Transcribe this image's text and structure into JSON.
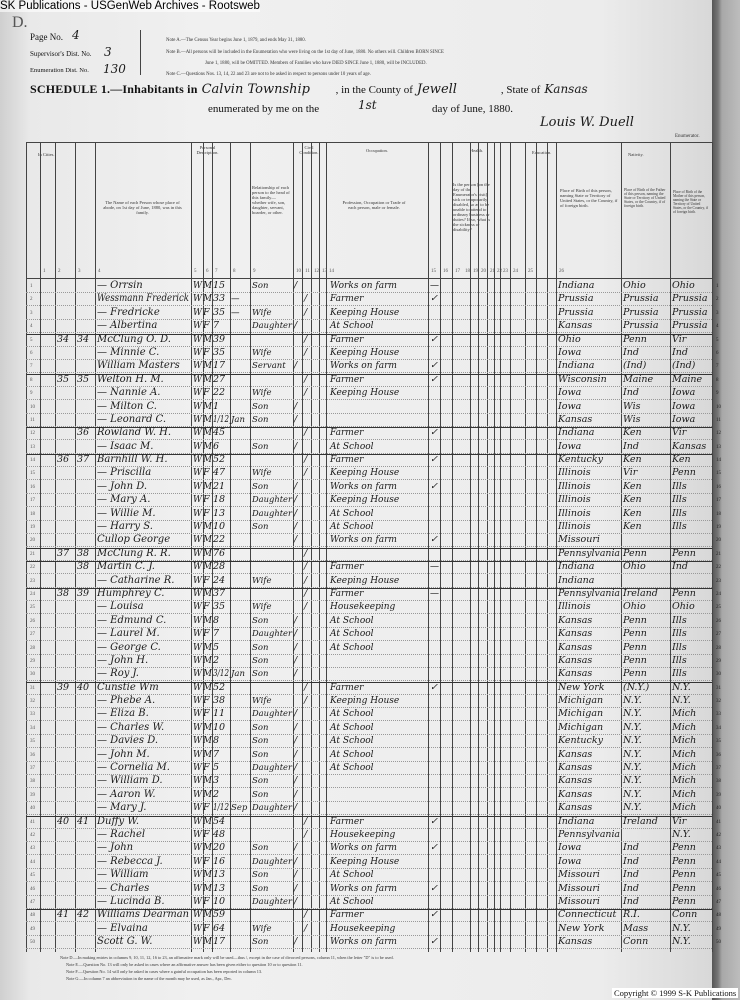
{
  "watermark_top": "SK Publications - USGenWeb Archives - Rootsweb",
  "copyright": "Copyright © 1999 S-K Publications",
  "header": {
    "corner_letter": "D.",
    "page_no_label": "Page No.",
    "page_no": "4",
    "supervisor_label": "Supervisor's Dist. No.",
    "supervisor": "3",
    "enum_label": "Enumeration Dist. No.",
    "enum": "130",
    "note_a": "Note A.—The Census Year begins June 1, 1879, and ends May 31, 1880.",
    "note_b1": "Note B.—All persons will be included in the Enumeration who were living on the 1st day of June, 1880. No others will. Children BORN SINCE",
    "note_b2": "June 1, 1880, will be OMITTED. Members of Families who have DIED SINCE June 1, 1880, will be INCLUDED.",
    "note_c": "Note C.—Questions Nos. 13, 14, 22 and 23 are not to be asked in respect to persons under 10 years of age.",
    "schedule_label": "SCHEDULE 1.—Inhabitants in",
    "township": "Calvin Township",
    "county_label": ", in the County of",
    "county": "Jewell",
    "state_label": ", State of",
    "state": "Kansas",
    "enumerated_label": "enumerated by me on the",
    "day": "1st",
    "date_suffix": "day of June, 1880.",
    "enumerator": "Louis W. Duell",
    "enumerator_label": "Enumerator."
  },
  "column_groups": {
    "in_cities": "In Cities.",
    "personal": "Personal Description.",
    "civil": "Civil Condition.",
    "occupation": "Occupation.",
    "health": "Health.",
    "education": "Education.",
    "nativity": "Nativity."
  },
  "column_headers": {
    "name": "The Name of each Person whose place of abode, on 1st day of June, 1880, was in this family.",
    "relationship": "Relationship of each person to the head of this family—whether wife, son, daughter, servant, boarder, or other.",
    "occupation": "Profession, Occupation or Trade of each person, male or female.",
    "health": "Is the person [on the day of the Enumerator's visit] sick or temporarily disabled, so as to be unable to attend to ordinary business or duties? If so, what is the sickness or disability?",
    "birthplace": "Place of Birth of this person, naming State or Territory of United States, or the Country, if of foreign birth.",
    "father": "Place of Birth of the Father of this person, naming the State or Territory of United States, or the Country, if of foreign birth.",
    "mother": "Place of Birth of the Mother of this person, naming the State or Territory of United States, or the Country, if of foreign birth."
  },
  "column_numbers": [
    "1",
    "2",
    "3",
    "4",
    "5",
    "6",
    "7",
    "8",
    "9",
    "10",
    "11",
    "12",
    "13",
    "14",
    "15",
    "16",
    "17",
    "18",
    "19",
    "20",
    "21",
    "22",
    "23",
    "24",
    "25",
    "26"
  ],
  "footnotes": [
    "Note D.—In making entries in columns 9, 10, 11, 12, 16 to 23, an affirmative mark only will be used—thus /, except in the case of divorced persons, column 11, when the letter \"D\" is to be used.",
    "Note E.—Question No. 13 will only be asked in cases where an affirmative answer has been given either to question 10 or to question 11.",
    "Note F.—Question No. 14 will only be asked in cases where a gainful occupation has been reported in column 13.",
    "Note G.—In column 7 an abbreviation in the name of the month may be used, as Jan., Apr., Dec."
  ],
  "rows": [
    {
      "dw": "",
      "fam": "",
      "name": "— Orrsin",
      "color": "W",
      "sex": "M",
      "age": "15",
      "month": "",
      "rel": "Son",
      "single": "/",
      "married": "",
      "occ": "Works on farm",
      "unemp": "—",
      "born": "Indiana",
      "father": "Ohio",
      "mother": "Ohio"
    },
    {
      "dw": "",
      "fam": "",
      "name": "Wessmann Frederick",
      "color": "W",
      "sex": "M",
      "age": "33",
      "month": "—",
      "rel": "",
      "single": "",
      "married": "/",
      "occ": "Farmer",
      "unemp": "✓",
      "born": "Prussia",
      "father": "Prussia",
      "mother": "Prussia"
    },
    {
      "dw": "",
      "fam": "",
      "name": "— Fredricke",
      "color": "W",
      "sex": "F",
      "age": "35",
      "month": "—",
      "rel": "Wife",
      "single": "",
      "married": "/",
      "occ": "Keeping House",
      "unemp": "",
      "born": "Prussia",
      "father": "Prussia",
      "mother": "Prussia"
    },
    {
      "dw": "",
      "fam": "",
      "name": "— Albertina",
      "color": "W",
      "sex": "F",
      "age": "7",
      "month": "",
      "rel": "Daughter",
      "single": "/",
      "married": "",
      "occ": "At School",
      "unemp": "",
      "born": "Kansas",
      "father": "Prussia",
      "mother": "Prussia"
    },
    {
      "dw": "34",
      "fam": "34",
      "name": "McClung O. D.",
      "color": "W",
      "sex": "M",
      "age": "39",
      "month": "",
      "rel": "",
      "single": "",
      "married": "/",
      "occ": "Farmer",
      "unemp": "✓",
      "born": "Ohio",
      "father": "Penn",
      "mother": "Vir"
    },
    {
      "dw": "",
      "fam": "",
      "name": "— Minnie C.",
      "color": "W",
      "sex": "F",
      "age": "35",
      "month": "",
      "rel": "Wife",
      "single": "",
      "married": "/",
      "occ": "Keeping House",
      "unemp": "",
      "born": "Iowa",
      "father": "Ind",
      "mother": "Ind"
    },
    {
      "dw": "",
      "fam": "",
      "name": "William Masters",
      "color": "W",
      "sex": "M",
      "age": "17",
      "month": "",
      "rel": "Servant",
      "single": "/",
      "married": "",
      "occ": "Works on farm",
      "unemp": "✓",
      "born": "Indiana",
      "father": "(Ind)",
      "mother": "(Ind)"
    },
    {
      "dw": "35",
      "fam": "35",
      "name": "Welton H. M.",
      "color": "W",
      "sex": "M",
      "age": "27",
      "month": "",
      "rel": "",
      "single": "",
      "married": "/",
      "occ": "Farmer",
      "unemp": "✓",
      "born": "Wisconsin",
      "father": "Maine",
      "mother": "Maine"
    },
    {
      "dw": "",
      "fam": "",
      "name": "— Nannie A.",
      "color": "W",
      "sex": "F",
      "age": "22",
      "month": "",
      "rel": "Wife",
      "single": "",
      "married": "/",
      "occ": "Keeping House",
      "unemp": "",
      "born": "Iowa",
      "father": "Ind",
      "mother": "Iowa"
    },
    {
      "dw": "",
      "fam": "",
      "name": "— Milton C.",
      "color": "W",
      "sex": "M",
      "age": "1",
      "month": "",
      "rel": "Son",
      "single": "/",
      "married": "",
      "occ": "",
      "unemp": "",
      "born": "Iowa",
      "father": "Wis",
      "mother": "Iowa"
    },
    {
      "dw": "",
      "fam": "",
      "name": "— Leonard C.",
      "color": "W",
      "sex": "M",
      "age": "1/12",
      "month": "Jan",
      "rel": "Son",
      "single": "/",
      "married": "",
      "occ": "",
      "unemp": "",
      "born": "Kansas",
      "father": "Wis",
      "mother": "Iowa"
    },
    {
      "dw": "",
      "fam": "36",
      "name": "Rowland W. H.",
      "color": "W",
      "sex": "M",
      "age": "45",
      "month": "",
      "rel": "",
      "single": "",
      "married": "/",
      "occ": "Farmer",
      "unemp": "✓",
      "born": "Indiana",
      "father": "Ken",
      "mother": "Vir"
    },
    {
      "dw": "",
      "fam": "",
      "name": "— Isaac M.",
      "color": "W",
      "sex": "M",
      "age": "6",
      "month": "",
      "rel": "Son",
      "single": "/",
      "married": "",
      "occ": "At School",
      "unemp": "",
      "born": "Iowa",
      "father": "Ind",
      "mother": "Kansas"
    },
    {
      "dw": "36",
      "fam": "37",
      "name": "Barnhill W. H.",
      "color": "W",
      "sex": "M",
      "age": "52",
      "month": "",
      "rel": "",
      "single": "",
      "married": "/",
      "occ": "Farmer",
      "unemp": "✓",
      "born": "Kentucky",
      "father": "Ken",
      "mother": "Ken"
    },
    {
      "dw": "",
      "fam": "",
      "name": "— Priscilla",
      "color": "W",
      "sex": "F",
      "age": "47",
      "month": "",
      "rel": "Wife",
      "single": "",
      "married": "/",
      "occ": "Keeping House",
      "unemp": "",
      "born": "Illinois",
      "father": "Vir",
      "mother": "Penn"
    },
    {
      "dw": "",
      "fam": "",
      "name": "— John D.",
      "color": "W",
      "sex": "M",
      "age": "21",
      "month": "",
      "rel": "Son",
      "single": "/",
      "married": "",
      "occ": "Works on farm",
      "unemp": "✓",
      "born": "Illinois",
      "father": "Ken",
      "mother": "Ills"
    },
    {
      "dw": "",
      "fam": "",
      "name": "— Mary A.",
      "color": "W",
      "sex": "F",
      "age": "18",
      "month": "",
      "rel": "Daughter",
      "single": "/",
      "married": "",
      "occ": "Keeping House",
      "unemp": "",
      "born": "Illinois",
      "father": "Ken",
      "mother": "Ills"
    },
    {
      "dw": "",
      "fam": "",
      "name": "— Willie M.",
      "color": "W",
      "sex": "F",
      "age": "13",
      "month": "",
      "rel": "Daughter",
      "single": "/",
      "married": "",
      "occ": "At School",
      "unemp": "",
      "born": "Illinois",
      "father": "Ken",
      "mother": "Ills"
    },
    {
      "dw": "",
      "fam": "",
      "name": "— Harry S.",
      "color": "W",
      "sex": "M",
      "age": "10",
      "month": "",
      "rel": "Son",
      "single": "/",
      "married": "",
      "occ": "At School",
      "unemp": "",
      "born": "Illinois",
      "father": "Ken",
      "mother": "Ills"
    },
    {
      "dw": "",
      "fam": "",
      "name": "Cullop George",
      "color": "W",
      "sex": "M",
      "age": "22",
      "month": "",
      "rel": "",
      "single": "/",
      "married": "",
      "occ": "Works on farm",
      "unemp": "✓",
      "born": "Missouri",
      "father": "",
      "mother": ""
    },
    {
      "dw": "37",
      "fam": "38",
      "name": "McClung R. R.",
      "color": "W",
      "sex": "M",
      "age": "76",
      "month": "",
      "rel": "",
      "single": "",
      "married": "/",
      "occ": "",
      "unemp": "",
      "born": "Pennsylvania",
      "father": "Penn",
      "mother": "Penn"
    },
    {
      "dw": "",
      "fam": "38",
      "name": "Martin C. J.",
      "color": "W",
      "sex": "M",
      "age": "28",
      "month": "",
      "rel": "",
      "single": "",
      "married": "/",
      "occ": "Farmer",
      "unemp": "—",
      "born": "Indiana",
      "father": "Ohio",
      "mother": "Ind"
    },
    {
      "dw": "",
      "fam": "",
      "name": "— Catharine R.",
      "color": "W",
      "sex": "F",
      "age": "24",
      "month": "",
      "rel": "Wife",
      "single": "",
      "married": "/",
      "occ": "Keeping House",
      "unemp": "",
      "born": "Indiana",
      "father": "",
      "mother": ""
    },
    {
      "dw": "38",
      "fam": "39",
      "name": "Humphrey C.",
      "color": "W",
      "sex": "M",
      "age": "37",
      "month": "",
      "rel": "",
      "single": "",
      "married": "/",
      "occ": "Farmer",
      "unemp": "—",
      "born": "Pennsylvania",
      "father": "Ireland",
      "mother": "Penn"
    },
    {
      "dw": "",
      "fam": "",
      "name": "— Louisa",
      "color": "W",
      "sex": "F",
      "age": "35",
      "month": "",
      "rel": "Wife",
      "single": "",
      "married": "/",
      "occ": "Housekeeping",
      "unemp": "",
      "born": "Illinois",
      "father": "Ohio",
      "mother": "Ohio"
    },
    {
      "dw": "",
      "fam": "",
      "name": "— Edmund C.",
      "color": "W",
      "sex": "M",
      "age": "8",
      "month": "",
      "rel": "Son",
      "single": "/",
      "married": "",
      "occ": "At School",
      "unemp": "",
      "born": "Kansas",
      "father": "Penn",
      "mother": "Ills"
    },
    {
      "dw": "",
      "fam": "",
      "name": "— Laurel M.",
      "color": "W",
      "sex": "F",
      "age": "7",
      "month": "",
      "rel": "Daughter",
      "single": "/",
      "married": "",
      "occ": "At School",
      "unemp": "",
      "born": "Kansas",
      "father": "Penn",
      "mother": "Ills"
    },
    {
      "dw": "",
      "fam": "",
      "name": "— George C.",
      "color": "W",
      "sex": "M",
      "age": "5",
      "month": "",
      "rel": "Son",
      "single": "/",
      "married": "",
      "occ": "At School",
      "unemp": "",
      "born": "Kansas",
      "father": "Penn",
      "mother": "Ills"
    },
    {
      "dw": "",
      "fam": "",
      "name": "— John H.",
      "color": "W",
      "sex": "M",
      "age": "2",
      "month": "",
      "rel": "Son",
      "single": "/",
      "married": "",
      "occ": "",
      "unemp": "",
      "born": "Kansas",
      "father": "Penn",
      "mother": "Ills"
    },
    {
      "dw": "",
      "fam": "",
      "name": "— Roy J.",
      "color": "W",
      "sex": "M",
      "age": "3/12",
      "month": "Jan",
      "rel": "Son",
      "single": "/",
      "married": "",
      "occ": "",
      "unemp": "",
      "born": "Kansas",
      "father": "Penn",
      "mother": "Ills"
    },
    {
      "dw": "39",
      "fam": "40",
      "name": "Cunstie Wm",
      "color": "W",
      "sex": "M",
      "age": "52",
      "month": "",
      "rel": "",
      "single": "",
      "married": "/",
      "occ": "Farmer",
      "unemp": "✓",
      "born": "New York",
      "father": "(N.Y.)",
      "mother": "N.Y."
    },
    {
      "dw": "",
      "fam": "",
      "name": "— Phebe A.",
      "color": "W",
      "sex": "F",
      "age": "38",
      "month": "",
      "rel": "Wife",
      "single": "",
      "married": "/",
      "occ": "Keeping House",
      "unemp": "",
      "born": "Michigan",
      "father": "N.Y.",
      "mother": "N.Y."
    },
    {
      "dw": "",
      "fam": "",
      "name": "— Eliza B.",
      "color": "W",
      "sex": "F",
      "age": "11",
      "month": "",
      "rel": "Daughter",
      "single": "/",
      "married": "",
      "occ": "At School",
      "unemp": "",
      "born": "Michigan",
      "father": "N.Y.",
      "mother": "Mich"
    },
    {
      "dw": "",
      "fam": "",
      "name": "— Charles W.",
      "color": "W",
      "sex": "M",
      "age": "10",
      "month": "",
      "rel": "Son",
      "single": "/",
      "married": "",
      "occ": "At School",
      "unemp": "",
      "born": "Michigan",
      "father": "N.Y.",
      "mother": "Mich"
    },
    {
      "dw": "",
      "fam": "",
      "name": "— Davies D.",
      "color": "W",
      "sex": "M",
      "age": "8",
      "month": "",
      "rel": "Son",
      "single": "/",
      "married": "",
      "occ": "At School",
      "unemp": "",
      "born": "Kentucky",
      "father": "N.Y.",
      "mother": "Mich"
    },
    {
      "dw": "",
      "fam": "",
      "name": "— John M.",
      "color": "W",
      "sex": "M",
      "age": "7",
      "month": "",
      "rel": "Son",
      "single": "/",
      "married": "",
      "occ": "At School",
      "unemp": "",
      "born": "Kansas",
      "father": "N.Y.",
      "mother": "Mich"
    },
    {
      "dw": "",
      "fam": "",
      "name": "— Cornelia M.",
      "color": "W",
      "sex": "F",
      "age": "5",
      "month": "",
      "rel": "Daughter",
      "single": "/",
      "married": "",
      "occ": "At School",
      "unemp": "",
      "born": "Kansas",
      "father": "N.Y.",
      "mother": "Mich"
    },
    {
      "dw": "",
      "fam": "",
      "name": "— William D.",
      "color": "W",
      "sex": "M",
      "age": "3",
      "month": "",
      "rel": "Son",
      "single": "/",
      "married": "",
      "occ": "",
      "unemp": "",
      "born": "Kansas",
      "father": "N.Y.",
      "mother": "Mich"
    },
    {
      "dw": "",
      "fam": "",
      "name": "— Aaron W.",
      "color": "W",
      "sex": "M",
      "age": "2",
      "month": "",
      "rel": "Son",
      "single": "/",
      "married": "",
      "occ": "",
      "unemp": "",
      "born": "Kansas",
      "father": "N.Y.",
      "mother": "Mich"
    },
    {
      "dw": "",
      "fam": "",
      "name": "— Mary J.",
      "color": "W",
      "sex": "F",
      "age": "1/12",
      "month": "Sep",
      "rel": "Daughter",
      "single": "/",
      "married": "",
      "occ": "",
      "unemp": "",
      "born": "Kansas",
      "father": "N.Y.",
      "mother": "Mich"
    },
    {
      "dw": "40",
      "fam": "41",
      "name": "Duffy W.",
      "color": "W",
      "sex": "M",
      "age": "54",
      "month": "",
      "rel": "",
      "single": "",
      "married": "/",
      "occ": "Farmer",
      "unemp": "✓",
      "born": "Indiana",
      "father": "Ireland",
      "mother": "Vir"
    },
    {
      "dw": "",
      "fam": "",
      "name": "— Rachel",
      "color": "W",
      "sex": "F",
      "age": "48",
      "month": "",
      "rel": "",
      "single": "",
      "married": "/",
      "occ": "Housekeeping",
      "unemp": "",
      "born": "Pennsylvania",
      "father": "",
      "mother": "N.Y."
    },
    {
      "dw": "",
      "fam": "",
      "name": "— John",
      "color": "W",
      "sex": "M",
      "age": "20",
      "month": "",
      "rel": "Son",
      "single": "/",
      "married": "",
      "occ": "Works on farm",
      "unemp": "✓",
      "born": "Iowa",
      "father": "Ind",
      "mother": "Penn"
    },
    {
      "dw": "",
      "fam": "",
      "name": "— Rebecca J.",
      "color": "W",
      "sex": "F",
      "age": "16",
      "month": "",
      "rel": "Daughter",
      "single": "/",
      "married": "",
      "occ": "Keeping House",
      "unemp": "",
      "born": "Iowa",
      "father": "Ind",
      "mother": "Penn"
    },
    {
      "dw": "",
      "fam": "",
      "name": "— William",
      "color": "W",
      "sex": "M",
      "age": "13",
      "month": "",
      "rel": "Son",
      "single": "/",
      "married": "",
      "occ": "At School",
      "unemp": "",
      "born": "Missouri",
      "father": "Ind",
      "mother": "Penn"
    },
    {
      "dw": "",
      "fam": "",
      "name": "— Charles",
      "color": "W",
      "sex": "M",
      "age": "13",
      "month": "",
      "rel": "Son",
      "single": "/",
      "married": "",
      "occ": "Works on farm",
      "unemp": "✓",
      "born": "Missouri",
      "father": "Ind",
      "mother": "Penn"
    },
    {
      "dw": "",
      "fam": "",
      "name": "— Lucinda B.",
      "color": "W",
      "sex": "F",
      "age": "10",
      "month": "",
      "rel": "Daughter",
      "single": "/",
      "married": "",
      "occ": "At School",
      "unemp": "",
      "born": "Missouri",
      "father": "Ind",
      "mother": "Penn"
    },
    {
      "dw": "41",
      "fam": "42",
      "name": "Williams Dearman",
      "color": "W",
      "sex": "M",
      "age": "59",
      "month": "",
      "rel": "",
      "single": "",
      "married": "/",
      "occ": "Farmer",
      "unemp": "✓",
      "born": "Connecticut",
      "father": "R.I.",
      "mother": "Conn"
    },
    {
      "dw": "",
      "fam": "",
      "name": "— Elvaina",
      "color": "W",
      "sex": "F",
      "age": "64",
      "month": "",
      "rel": "Wife",
      "single": "",
      "married": "/",
      "occ": "Housekeeping",
      "unemp": "",
      "born": "New York",
      "father": "Mass",
      "mother": "N.Y."
    },
    {
      "dw": "",
      "fam": "",
      "name": "Scott G. W.",
      "color": "W",
      "sex": "M",
      "age": "17",
      "month": "",
      "rel": "Son",
      "single": "/",
      "married": "",
      "occ": "Works on farm",
      "unemp": "✓",
      "born": "Kansas",
      "father": "Conn",
      "mother": "N.Y."
    }
  ]
}
